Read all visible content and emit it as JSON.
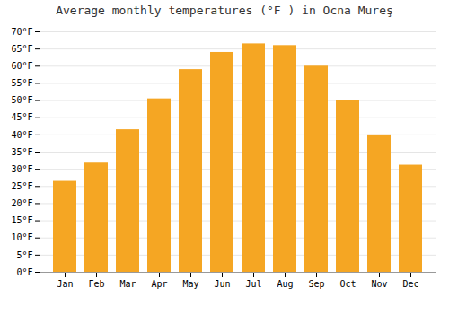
{
  "chart_data": {
    "type": "bar",
    "title": "Average monthly temperatures (°F ) in Ocna Mureş",
    "categories": [
      "Jan",
      "Feb",
      "Mar",
      "Apr",
      "May",
      "Jun",
      "Jul",
      "Aug",
      "Sep",
      "Oct",
      "Nov",
      "Dec"
    ],
    "values": [
      26.5,
      31.8,
      41.5,
      50.5,
      59.0,
      64.0,
      66.5,
      66.0,
      60.0,
      50.0,
      40.0,
      31.2
    ],
    "color": "#F5A623",
    "ylim": [
      0,
      70
    ],
    "yticks": [
      {
        "value": 0,
        "label": "0°F"
      },
      {
        "value": 5,
        "label": "5°F"
      },
      {
        "value": 10,
        "label": "10°F"
      },
      {
        "value": 15,
        "label": "15°F"
      },
      {
        "value": 20,
        "label": "20°F"
      },
      {
        "value": 25,
        "label": "25°F"
      },
      {
        "value": 30,
        "label": "30°F"
      },
      {
        "value": 35,
        "label": "35°F"
      },
      {
        "value": 40,
        "label": "40°F"
      },
      {
        "value": 45,
        "label": "45°F"
      },
      {
        "value": 50,
        "label": "50°F"
      },
      {
        "value": 55,
        "label": "55°F"
      },
      {
        "value": 60,
        "label": "60°F"
      },
      {
        "value": 65,
        "label": "65°F"
      },
      {
        "value": 70,
        "label": "70°F"
      }
    ],
    "grid": true
  }
}
